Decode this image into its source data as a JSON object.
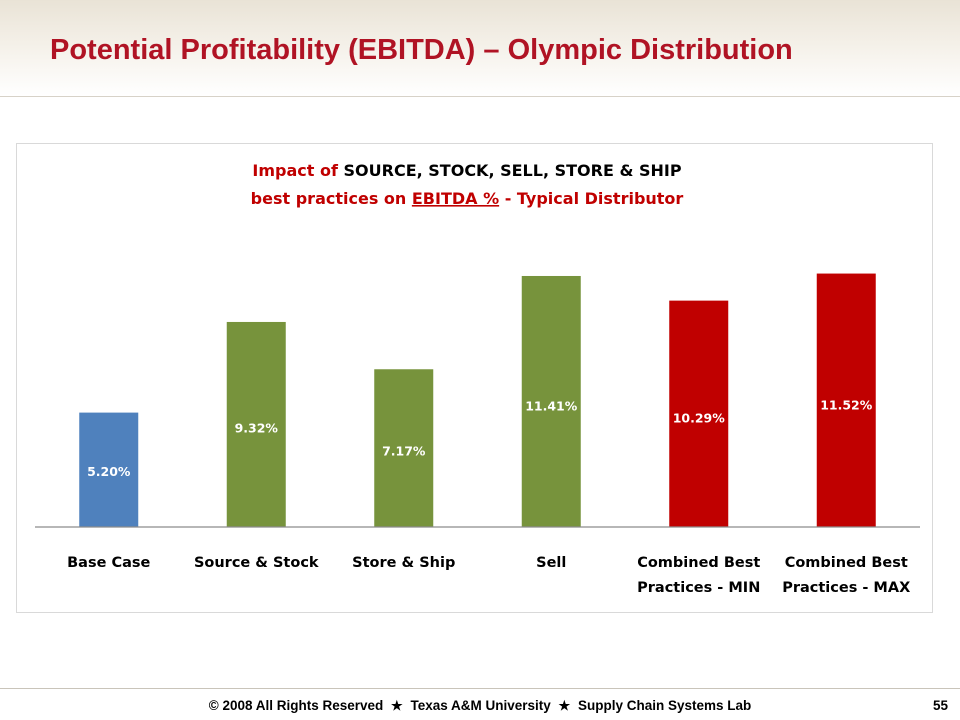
{
  "slide": {
    "title": "Potential Profitability (EBITDA) – Olympic Distribution",
    "footer": {
      "copyright_symbol": "©",
      "rights": "2008 All Rights Reserved",
      "star": "★",
      "university": "Texas A&M University",
      "lab": "Supply Chain Systems Lab"
    },
    "page_number": "55"
  },
  "chart_data": {
    "type": "bar",
    "title_lines": [
      [
        {
          "text": "Impact of ",
          "color": "#c00000",
          "underline": false
        },
        {
          "text": "SOURCE, STOCK, SELL, STORE & SHIP",
          "color": "#000000",
          "underline": false
        }
      ],
      [
        {
          "text": "best practices on ",
          "color": "#c00000",
          "underline": false
        },
        {
          "text": "EBITDA %",
          "color": "#c00000",
          "underline": true
        },
        {
          "text": " - Typical  Distributor",
          "color": "#c00000",
          "underline": false
        }
      ]
    ],
    "categories": [
      [
        "Base Case"
      ],
      [
        "Source & Stock"
      ],
      [
        "Store & Ship"
      ],
      [
        "Sell"
      ],
      [
        "Combined Best",
        "Practices - MIN"
      ],
      [
        "Combined Best",
        "Practices - MAX"
      ]
    ],
    "values": [
      5.2,
      9.32,
      7.17,
      11.41,
      10.29,
      11.52
    ],
    "labels": [
      "5.20%",
      "9.32%",
      "7.17%",
      "11.41%",
      "10.29%",
      "11.52%"
    ],
    "colors": [
      "#4f81bd",
      "#77933c",
      "#77933c",
      "#77933c",
      "#c00000",
      "#c00000"
    ],
    "ylim": [
      0,
      12
    ],
    "grid": false,
    "legend": "none",
    "xlabel": "",
    "ylabel": ""
  }
}
